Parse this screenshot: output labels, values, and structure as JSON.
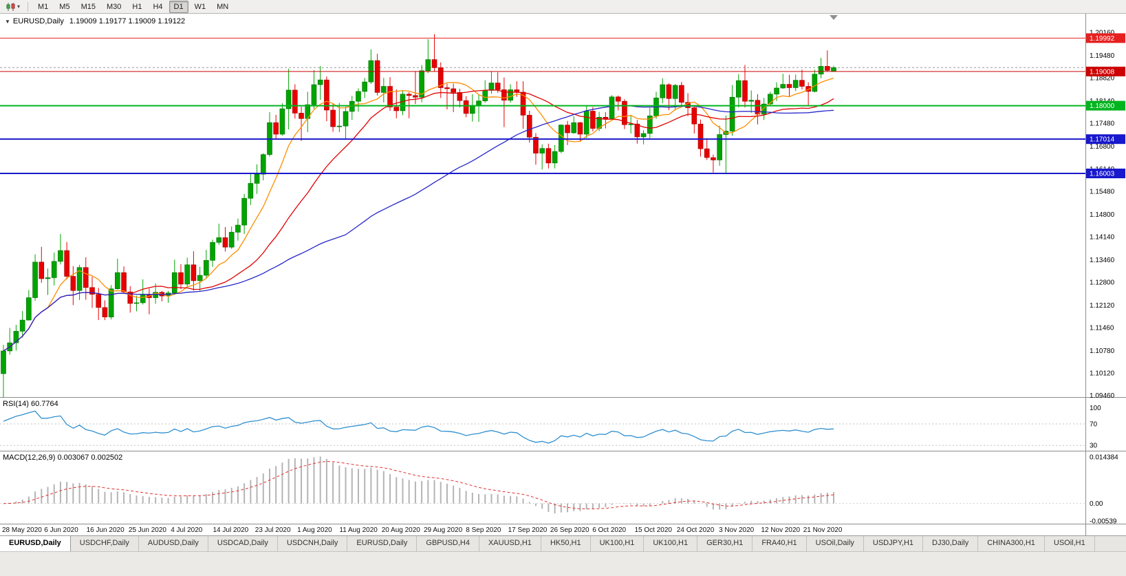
{
  "toolbar": {
    "chart_type_icon": "candlestick-chart-icon",
    "dropdown_caret": "▾",
    "timeframes": [
      "M1",
      "M5",
      "M15",
      "M30",
      "H1",
      "H4",
      "D1",
      "W1",
      "MN"
    ],
    "active_timeframe": "D1"
  },
  "chart_header": {
    "arrow": "▼",
    "title": "EURUSD,Daily",
    "ohlc": "1.19009 1.19177 1.19009 1.19122"
  },
  "active_tab_index": 0,
  "bottom_tabs": [
    "EURUSD,Daily",
    "USDCHF,Daily",
    "AUDUSD,Daily",
    "USDCAD,Daily",
    "USDCNH,Daily",
    "EURUSD,Daily",
    "GBPUSD,H4",
    "XAUUSD,H1",
    "HK50,H1",
    "UK100,H1",
    "UK100,H1",
    "GER30,H1",
    "FRA40,H1",
    "USOil,Daily",
    "USDJPY,H1",
    "DJ30,Daily",
    "CHINA300,H1",
    "USOil,H1"
  ],
  "chart_data": {
    "type": "candlestick",
    "symbol": "EURUSD",
    "timeframe": "Daily",
    "up_color": "#00a400",
    "up_border": "#006e00",
    "down_color": "#e80000",
    "down_border": "#9c0000",
    "ylim": [
      1.0941,
      1.2071
    ],
    "y_axis_labels": [
      "1.20160",
      "1.19480",
      "1.18820",
      "1.18140",
      "1.17480",
      "1.16800",
      "1.16140",
      "1.15480",
      "1.14800",
      "1.14140",
      "1.13460",
      "1.12800",
      "1.12120",
      "1.11460",
      "1.10780",
      "1.10120",
      "1.09460"
    ],
    "x_labels": [
      "28 May 2020",
      "6 Jun 2020",
      "16 Jun 2020",
      "25 Jun 2020",
      "4 Jul 2020",
      "14 Jul 2020",
      "23 Jul 2020",
      "1 Aug 2020",
      "11 Aug 2020",
      "20 Aug 2020",
      "29 Aug 2020",
      "8 Sep 2020",
      "17 Sep 2020",
      "26 Sep 2020",
      "6 Oct 2020",
      "15 Oct 2020",
      "24 Oct 2020",
      "3 Nov 2020",
      "12 Nov 2020",
      "21 Nov 2020"
    ],
    "moving_averages": [
      {
        "period": 8,
        "color": "#ff8c00"
      },
      {
        "period": 21,
        "color": "#e00000"
      },
      {
        "period": 55,
        "color": "#2626c8"
      }
    ],
    "horizontal_lines": [
      {
        "price": 1.19992,
        "label": "1.19992",
        "color": "#e62020",
        "width": 1
      },
      {
        "price": 1.19008,
        "label": "1.19008",
        "color": "#cc0000",
        "width": 1
      },
      {
        "price": 1.18,
        "label": "1.18000",
        "color": "#00b41e",
        "width": 2
      },
      {
        "price": 1.17014,
        "label": "1.17014",
        "color": "#1818cc",
        "width": 2
      },
      {
        "price": 1.16003,
        "label": "1.16003",
        "color": "#1818cc",
        "width": 2
      }
    ],
    "bid_line": {
      "price": 1.19122,
      "color": "#9a9a9a",
      "style": "dashed"
    },
    "rsi": {
      "period": 14,
      "value_label": "RSI(14) 60.7764",
      "axis_labels": [
        "100",
        "70",
        "30"
      ],
      "levels": [
        100,
        70,
        30
      ],
      "range": [
        20,
        118.75
      ],
      "color": "#2f8fd0"
    },
    "macd": {
      "label": "MACD(12,26,9) 0.003067 0.002502",
      "fast": 12,
      "slow": 26,
      "signal": 9,
      "range": [
        -0.00624,
        0.01609
      ],
      "axis_labels": [
        {
          "text": "0.014384",
          "value": 0.014384
        },
        {
          "text": "0.00",
          "value": 0
        },
        {
          "text": "-0.00539",
          "value": -0.00539
        }
      ],
      "histogram_color": "#b4b4b4",
      "signal_color": "#e03030"
    },
    "candles": [
      [
        1.101,
        1.1095,
        1.094,
        1.1077
      ],
      [
        1.1077,
        1.1145,
        1.1066,
        1.1101
      ],
      [
        1.1101,
        1.1154,
        1.1078,
        1.1135
      ],
      [
        1.1135,
        1.1195,
        1.1116,
        1.1168
      ],
      [
        1.1168,
        1.1257,
        1.1167,
        1.1234
      ],
      [
        1.1234,
        1.1362,
        1.1225,
        1.1339
      ],
      [
        1.1339,
        1.1384,
        1.1278,
        1.129
      ],
      [
        1.129,
        1.132,
        1.1242,
        1.1293
      ],
      [
        1.1293,
        1.1367,
        1.127,
        1.1341
      ],
      [
        1.1341,
        1.1422,
        1.1332,
        1.1373
      ],
      [
        1.1373,
        1.1398,
        1.1288,
        1.1297
      ],
      [
        1.1297,
        1.1327,
        1.1212,
        1.1255
      ],
      [
        1.1255,
        1.1331,
        1.1227,
        1.1323
      ],
      [
        1.1323,
        1.1353,
        1.1228,
        1.1264
      ],
      [
        1.1264,
        1.1296,
        1.1204,
        1.1244
      ],
      [
        1.1244,
        1.1263,
        1.1168,
        1.1205
      ],
      [
        1.1205,
        1.1226,
        1.1168,
        1.1177
      ],
      [
        1.1177,
        1.1271,
        1.117,
        1.126
      ],
      [
        1.126,
        1.1349,
        1.1258,
        1.1308
      ],
      [
        1.1308,
        1.1326,
        1.1247,
        1.1251
      ],
      [
        1.1251,
        1.1268,
        1.119,
        1.1217
      ],
      [
        1.1217,
        1.124,
        1.1194,
        1.1219
      ],
      [
        1.1219,
        1.1288,
        1.1214,
        1.1242
      ],
      [
        1.1242,
        1.1261,
        1.1185,
        1.1234
      ],
      [
        1.1234,
        1.1276,
        1.1216,
        1.125
      ],
      [
        1.125,
        1.1254,
        1.1223,
        1.1239
      ],
      [
        1.1239,
        1.1254,
        1.1219,
        1.1248
      ],
      [
        1.1248,
        1.1346,
        1.1242,
        1.1308
      ],
      [
        1.1308,
        1.1333,
        1.1259,
        1.1274
      ],
      [
        1.1274,
        1.1352,
        1.1265,
        1.1331
      ],
      [
        1.1331,
        1.1371,
        1.1255,
        1.1284
      ],
      [
        1.1284,
        1.1325,
        1.1254,
        1.13
      ],
      [
        1.13,
        1.1375,
        1.1293,
        1.1344
      ],
      [
        1.1344,
        1.1405,
        1.1325,
        1.1397
      ],
      [
        1.1397,
        1.1452,
        1.139,
        1.1411
      ],
      [
        1.1411,
        1.1442,
        1.137,
        1.1383
      ],
      [
        1.1383,
        1.1444,
        1.1378,
        1.1427
      ],
      [
        1.1427,
        1.1467,
        1.1402,
        1.1448
      ],
      [
        1.1448,
        1.154,
        1.1422,
        1.1527
      ],
      [
        1.1527,
        1.1601,
        1.1507,
        1.1571
      ],
      [
        1.1571,
        1.1627,
        1.154,
        1.1598
      ],
      [
        1.1598,
        1.166,
        1.158,
        1.1656
      ],
      [
        1.1656,
        1.1781,
        1.165,
        1.175
      ],
      [
        1.175,
        1.1773,
        1.1701,
        1.1716
      ],
      [
        1.1716,
        1.1807,
        1.1712,
        1.1791
      ],
      [
        1.1791,
        1.1909,
        1.173,
        1.1846
      ],
      [
        1.1846,
        1.1863,
        1.1762,
        1.1778
      ],
      [
        1.1778,
        1.1797,
        1.1696,
        1.1762
      ],
      [
        1.1762,
        1.1841,
        1.1722,
        1.1803
      ],
      [
        1.1803,
        1.1905,
        1.1791,
        1.1862
      ],
      [
        1.1862,
        1.1917,
        1.1817,
        1.1876
      ],
      [
        1.1876,
        1.1886,
        1.1754,
        1.1787
      ],
      [
        1.1787,
        1.1805,
        1.1723,
        1.1738
      ],
      [
        1.1738,
        1.1808,
        1.1722,
        1.174
      ],
      [
        1.174,
        1.1797,
        1.1701,
        1.1783
      ],
      [
        1.1783,
        1.1829,
        1.1758,
        1.1813
      ],
      [
        1.1813,
        1.1851,
        1.1782,
        1.1842
      ],
      [
        1.1842,
        1.1882,
        1.1823,
        1.187
      ],
      [
        1.187,
        1.1966,
        1.1864,
        1.1933
      ],
      [
        1.1933,
        1.1953,
        1.183,
        1.1839
      ],
      [
        1.1839,
        1.1882,
        1.1809,
        1.1857
      ],
      [
        1.1857,
        1.1884,
        1.1785,
        1.1796
      ],
      [
        1.1796,
        1.1848,
        1.1763,
        1.1785
      ],
      [
        1.1785,
        1.1846,
        1.1772,
        1.1834
      ],
      [
        1.1834,
        1.184,
        1.1763,
        1.183
      ],
      [
        1.183,
        1.1902,
        1.1805,
        1.1825
      ],
      [
        1.1825,
        1.192,
        1.181,
        1.1903
      ],
      [
        1.1903,
        1.1996,
        1.1896,
        1.1936
      ],
      [
        1.1936,
        1.2011,
        1.1901,
        1.1912
      ],
      [
        1.1912,
        1.1928,
        1.1823,
        1.1853
      ],
      [
        1.1853,
        1.1865,
        1.1789,
        1.185
      ],
      [
        1.185,
        1.1865,
        1.1781,
        1.1839
      ],
      [
        1.1839,
        1.185,
        1.1795,
        1.1815
      ],
      [
        1.1815,
        1.1828,
        1.1766,
        1.1777
      ],
      [
        1.1777,
        1.1834,
        1.1753,
        1.1801
      ],
      [
        1.1801,
        1.1833,
        1.1752,
        1.1814
      ],
      [
        1.1814,
        1.1875,
        1.1809,
        1.1845
      ],
      [
        1.1845,
        1.1902,
        1.1835,
        1.1867
      ],
      [
        1.1867,
        1.1899,
        1.1838,
        1.1847
      ],
      [
        1.1847,
        1.1883,
        1.1737,
        1.1816
      ],
      [
        1.1816,
        1.1863,
        1.1809,
        1.1847
      ],
      [
        1.1847,
        1.1872,
        1.1826,
        1.184
      ],
      [
        1.184,
        1.1872,
        1.1732,
        1.1772
      ],
      [
        1.1772,
        1.1785,
        1.1691,
        1.1707
      ],
      [
        1.1707,
        1.1719,
        1.1626,
        1.166
      ],
      [
        1.166,
        1.1686,
        1.1612,
        1.1674
      ],
      [
        1.1674,
        1.1688,
        1.1615,
        1.1631
      ],
      [
        1.1631,
        1.1684,
        1.1615,
        1.1665
      ],
      [
        1.1665,
        1.1745,
        1.166,
        1.1743
      ],
      [
        1.1743,
        1.1755,
        1.1684,
        1.172
      ],
      [
        1.172,
        1.1769,
        1.1717,
        1.175
      ],
      [
        1.175,
        1.1752,
        1.1695,
        1.1716
      ],
      [
        1.1716,
        1.1798,
        1.1705,
        1.1784
      ],
      [
        1.1784,
        1.1796,
        1.1724,
        1.1733
      ],
      [
        1.1733,
        1.1782,
        1.1725,
        1.1766
      ],
      [
        1.1766,
        1.1781,
        1.1733,
        1.1761
      ],
      [
        1.1761,
        1.1831,
        1.1758,
        1.1826
      ],
      [
        1.1826,
        1.183,
        1.1786,
        1.1813
      ],
      [
        1.1813,
        1.1819,
        1.1731,
        1.1744
      ],
      [
        1.1744,
        1.1773,
        1.1718,
        1.1746
      ],
      [
        1.1746,
        1.1758,
        1.1688,
        1.1708
      ],
      [
        1.1708,
        1.1728,
        1.1686,
        1.1718
      ],
      [
        1.1718,
        1.1794,
        1.1704,
        1.177
      ],
      [
        1.177,
        1.1841,
        1.1761,
        1.1823
      ],
      [
        1.1823,
        1.1881,
        1.1807,
        1.1862
      ],
      [
        1.1862,
        1.1866,
        1.1787,
        1.1821
      ],
      [
        1.1821,
        1.1864,
        1.1786,
        1.186
      ],
      [
        1.186,
        1.187,
        1.1796,
        1.181
      ],
      [
        1.181,
        1.1837,
        1.1769,
        1.1794
      ],
      [
        1.1794,
        1.18,
        1.1718,
        1.1746
      ],
      [
        1.1746,
        1.1759,
        1.165,
        1.1673
      ],
      [
        1.1673,
        1.1704,
        1.164,
        1.1647
      ],
      [
        1.1647,
        1.1656,
        1.1603,
        1.164
      ],
      [
        1.164,
        1.1741,
        1.1623,
        1.1715
      ],
      [
        1.1715,
        1.1771,
        1.1602,
        1.1725
      ],
      [
        1.1725,
        1.1861,
        1.1711,
        1.1825
      ],
      [
        1.1825,
        1.1893,
        1.1795,
        1.1874
      ],
      [
        1.1874,
        1.192,
        1.1795,
        1.1813
      ],
      [
        1.1813,
        1.1845,
        1.1779,
        1.1816
      ],
      [
        1.1816,
        1.1834,
        1.1745,
        1.1775
      ],
      [
        1.1775,
        1.1823,
        1.1758,
        1.1805
      ],
      [
        1.1805,
        1.1841,
        1.1799,
        1.1834
      ],
      [
        1.1834,
        1.1869,
        1.1814,
        1.1852
      ],
      [
        1.1852,
        1.1894,
        1.185,
        1.1863
      ],
      [
        1.1863,
        1.1891,
        1.1826,
        1.1853
      ],
      [
        1.1853,
        1.1892,
        1.1843,
        1.1875
      ],
      [
        1.1875,
        1.1906,
        1.1848,
        1.1857
      ],
      [
        1.1857,
        1.1869,
        1.18,
        1.1842
      ],
      [
        1.1842,
        1.1906,
        1.1839,
        1.1893
      ],
      [
        1.1893,
        1.1941,
        1.1881,
        1.1916
      ],
      [
        1.1916,
        1.1963,
        1.19,
        1.1904
      ],
      [
        1.19009,
        1.19177,
        1.19009,
        1.19122
      ]
    ]
  }
}
